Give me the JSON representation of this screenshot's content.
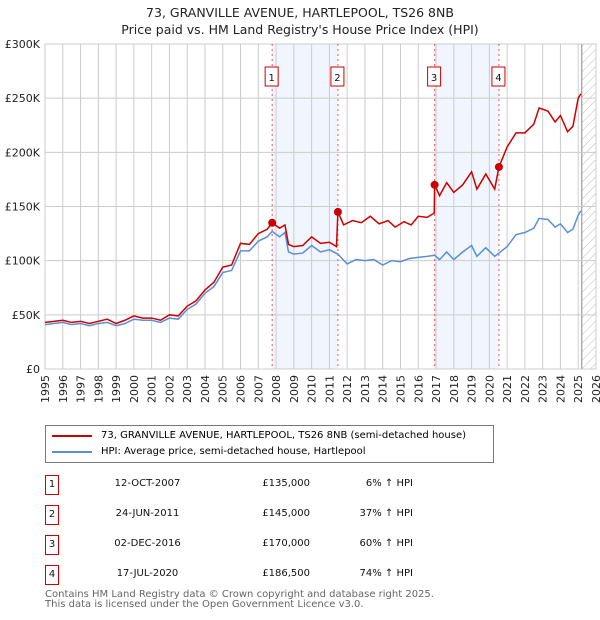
{
  "title": "73, GRANVILLE AVENUE, HARTLEPOOL, TS26 8NB",
  "subtitle": "Price paid vs. HM Land Registry's House Price Index (HPI)",
  "chart_data": {
    "type": "line",
    "xlim": [
      1995,
      2026
    ],
    "ylim": [
      0,
      300000
    ],
    "yticks": [
      {
        "v": 0,
        "label": "£0"
      },
      {
        "v": 50000,
        "label": "£50K"
      },
      {
        "v": 100000,
        "label": "£100K"
      },
      {
        "v": 150000,
        "label": "£150K"
      },
      {
        "v": 200000,
        "label": "£200K"
      },
      {
        "v": 250000,
        "label": "£250K"
      },
      {
        "v": 300000,
        "label": "£300K"
      }
    ],
    "xticks": [
      "1995",
      "1996",
      "1997",
      "1998",
      "1999",
      "2000",
      "2001",
      "2002",
      "2003",
      "2004",
      "2005",
      "2006",
      "2007",
      "2008",
      "2009",
      "2010",
      "2011",
      "2012",
      "2013",
      "2014",
      "2015",
      "2016",
      "2017",
      "2018",
      "2019",
      "2020",
      "2021",
      "2022",
      "2023",
      "2024",
      "2025",
      "2026"
    ],
    "forecast_from": 2025.2,
    "shaded_ranges": [
      [
        2007.78,
        2011.48
      ],
      [
        2016.92,
        2020.54
      ]
    ],
    "series": [
      {
        "name": "73, GRANVILLE AVENUE, HARTLEPOOL, TS26 8NB (semi-detached house)",
        "color": "#cc0000",
        "points": [
          [
            1995,
            43000
          ],
          [
            1995.5,
            44000
          ],
          [
            1996,
            45000
          ],
          [
            1996.5,
            43000
          ],
          [
            1997,
            44000
          ],
          [
            1997.5,
            42000
          ],
          [
            1998,
            44000
          ],
          [
            1998.5,
            46000
          ],
          [
            1999,
            42000
          ],
          [
            1999.5,
            45000
          ],
          [
            2000,
            49000
          ],
          [
            2000.5,
            47000
          ],
          [
            2001,
            47000
          ],
          [
            2001.5,
            45000
          ],
          [
            2002,
            50000
          ],
          [
            2002.5,
            49000
          ],
          [
            2003,
            58000
          ],
          [
            2003.5,
            63000
          ],
          [
            2004,
            73000
          ],
          [
            2004.5,
            80000
          ],
          [
            2005,
            94000
          ],
          [
            2005.5,
            96000
          ],
          [
            2006,
            116000
          ],
          [
            2006.5,
            115000
          ],
          [
            2007,
            125000
          ],
          [
            2007.5,
            129000
          ],
          [
            2007.78,
            135000
          ],
          [
            2008.2,
            130000
          ],
          [
            2008.5,
            133000
          ],
          [
            2008.7,
            115000
          ],
          [
            2009,
            113000
          ],
          [
            2009.5,
            114000
          ],
          [
            2010,
            122000
          ],
          [
            2010.5,
            116000
          ],
          [
            2011,
            117000
          ],
          [
            2011.4,
            113000
          ],
          [
            2011.48,
            145000
          ],
          [
            2011.8,
            133000
          ],
          [
            2012.3,
            137000
          ],
          [
            2012.8,
            135000
          ],
          [
            2013.3,
            141000
          ],
          [
            2013.8,
            134000
          ],
          [
            2014.3,
            137000
          ],
          [
            2014.7,
            131000
          ],
          [
            2015.2,
            136000
          ],
          [
            2015.6,
            133000
          ],
          [
            2016,
            141000
          ],
          [
            2016.5,
            140000
          ],
          [
            2016.9,
            144000
          ],
          [
            2016.92,
            170000
          ],
          [
            2017.2,
            160000
          ],
          [
            2017.6,
            172000
          ],
          [
            2018,
            163000
          ],
          [
            2018.5,
            170000
          ],
          [
            2019,
            182000
          ],
          [
            2019.3,
            166000
          ],
          [
            2019.8,
            180000
          ],
          [
            2020.3,
            166000
          ],
          [
            2020.54,
            186500
          ],
          [
            2021,
            205000
          ],
          [
            2021.5,
            218000
          ],
          [
            2022,
            218000
          ],
          [
            2022.5,
            226000
          ],
          [
            2022.8,
            241000
          ],
          [
            2023.3,
            238000
          ],
          [
            2023.7,
            228000
          ],
          [
            2024,
            234000
          ],
          [
            2024.4,
            219000
          ],
          [
            2024.7,
            224000
          ],
          [
            2025,
            250000
          ],
          [
            2025.15,
            254000
          ]
        ]
      },
      {
        "name": "HPI: Average price, semi-detached house, Hartlepool",
        "color": "#5b8fd4",
        "points": [
          [
            1995,
            41000
          ],
          [
            1995.5,
            42000
          ],
          [
            1996,
            43000
          ],
          [
            1996.5,
            41000
          ],
          [
            1997,
            42000
          ],
          [
            1997.5,
            40000
          ],
          [
            1998,
            42000
          ],
          [
            1998.5,
            43000
          ],
          [
            1999,
            40000
          ],
          [
            1999.5,
            42000
          ],
          [
            2000,
            46000
          ],
          [
            2000.5,
            45000
          ],
          [
            2001,
            45000
          ],
          [
            2001.5,
            43000
          ],
          [
            2002,
            47000
          ],
          [
            2002.5,
            46000
          ],
          [
            2003,
            55000
          ],
          [
            2003.5,
            60000
          ],
          [
            2004,
            70000
          ],
          [
            2004.5,
            76000
          ],
          [
            2005,
            89000
          ],
          [
            2005.5,
            91000
          ],
          [
            2006,
            109000
          ],
          [
            2006.5,
            109000
          ],
          [
            2007,
            118000
          ],
          [
            2007.5,
            122000
          ],
          [
            2007.78,
            127000
          ],
          [
            2008.2,
            122000
          ],
          [
            2008.5,
            126000
          ],
          [
            2008.7,
            108000
          ],
          [
            2009,
            106000
          ],
          [
            2009.5,
            107000
          ],
          [
            2010,
            114000
          ],
          [
            2010.5,
            108000
          ],
          [
            2011,
            110000
          ],
          [
            2011.48,
            106000
          ],
          [
            2012,
            97000
          ],
          [
            2012.5,
            101000
          ],
          [
            2013,
            100000
          ],
          [
            2013.5,
            101000
          ],
          [
            2014,
            96000
          ],
          [
            2014.5,
            100000
          ],
          [
            2015,
            99000
          ],
          [
            2015.5,
            102000
          ],
          [
            2016,
            103000
          ],
          [
            2016.5,
            104000
          ],
          [
            2016.92,
            105000
          ],
          [
            2017.2,
            101000
          ],
          [
            2017.6,
            108000
          ],
          [
            2018,
            101000
          ],
          [
            2018.5,
            108000
          ],
          [
            2019,
            114000
          ],
          [
            2019.3,
            104000
          ],
          [
            2019.8,
            112000
          ],
          [
            2020.3,
            104000
          ],
          [
            2020.54,
            107000
          ],
          [
            2021,
            113000
          ],
          [
            2021.5,
            124000
          ],
          [
            2022,
            126000
          ],
          [
            2022.5,
            130000
          ],
          [
            2022.8,
            139000
          ],
          [
            2023.3,
            138000
          ],
          [
            2023.7,
            131000
          ],
          [
            2024,
            134000
          ],
          [
            2024.4,
            126000
          ],
          [
            2024.7,
            129000
          ],
          [
            2025,
            142000
          ],
          [
            2025.15,
            146000
          ]
        ]
      }
    ],
    "sales": [
      {
        "label": "1",
        "x": 2007.78,
        "y": 135000
      },
      {
        "label": "2",
        "x": 2011.48,
        "y": 145000
      },
      {
        "label": "3",
        "x": 2016.92,
        "y": 170000
      },
      {
        "label": "4",
        "x": 2020.54,
        "y": 186500
      }
    ]
  },
  "legend": [
    {
      "label": "73, GRANVILLE AVENUE, HARTLEPOOL, TS26 8NB (semi-detached house)",
      "color": "#cc0000"
    },
    {
      "label": "HPI: Average price, semi-detached house, Hartlepool",
      "color": "#5b8fd4"
    }
  ],
  "transactions": [
    {
      "num": "1",
      "date": "12-OCT-2007",
      "price": "£135,000",
      "hpi": "6% ↑ HPI"
    },
    {
      "num": "2",
      "date": "24-JUN-2011",
      "price": "£145,000",
      "hpi": "37% ↑ HPI"
    },
    {
      "num": "3",
      "date": "02-DEC-2016",
      "price": "£170,000",
      "hpi": "60% ↑ HPI"
    },
    {
      "num": "4",
      "date": "17-JUL-2020",
      "price": "£186,500",
      "hpi": "74% ↑ HPI"
    }
  ],
  "footer": [
    "Contains HM Land Registry data © Crown copyright and database right 2025.",
    "This data is licensed under the Open Government Licence v3.0."
  ]
}
